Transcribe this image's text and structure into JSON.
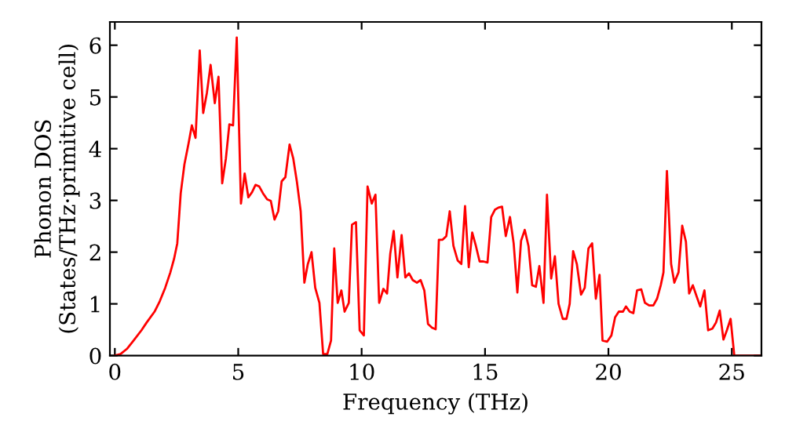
{
  "chart_data": {
    "type": "line",
    "xlabel": "Frequency (THz)",
    "ylabel": "Phonon DOS\n(States/THz·primitive cell)",
    "xlim": [
      -0.2,
      26.2
    ],
    "ylim": [
      0,
      6.45
    ],
    "xticks": [
      0,
      5,
      10,
      15,
      20,
      25
    ],
    "yticks": [
      0,
      1,
      2,
      3,
      4,
      5,
      6
    ],
    "grid": false,
    "legend": false,
    "marker": "none",
    "line_style": "solid",
    "series": [
      {
        "color": "#ff0000",
        "x": [
          0,
          0.23,
          0.49,
          0.76,
          1.08,
          1.29,
          1.61,
          1.82,
          2.04,
          2.25,
          2.4,
          2.53,
          2.67,
          2.82,
          2.99,
          3.12,
          3.27,
          3.44,
          3.58,
          3.73,
          3.88,
          4.05,
          4.2,
          4.35,
          4.5,
          4.64,
          4.79,
          4.94,
          5.11,
          5.26,
          5.41,
          5.56,
          5.7,
          5.85,
          6.0,
          6.17,
          6.32,
          6.47,
          6.62,
          6.76,
          6.91,
          7.08,
          7.23,
          7.38,
          7.53,
          7.68,
          7.82,
          7.97,
          8.12,
          8.29,
          8.44,
          8.61,
          8.76,
          8.89,
          9.03,
          9.18,
          9.31,
          9.48,
          9.61,
          9.77,
          9.92,
          10.09,
          10.24,
          10.41,
          10.56,
          10.71,
          10.88,
          11.03,
          11.16,
          11.3,
          11.45,
          11.62,
          11.77,
          11.92,
          12.07,
          12.24,
          12.39,
          12.54,
          12.69,
          12.85,
          13.0,
          13.13,
          13.28,
          13.43,
          13.57,
          13.72,
          13.89,
          14.04,
          14.19,
          14.34,
          14.48,
          14.63,
          14.78,
          14.93,
          15.1,
          15.25,
          15.4,
          15.54,
          15.69,
          15.84,
          16.01,
          16.16,
          16.31,
          16.46,
          16.61,
          16.76,
          16.91,
          17.06,
          17.2,
          17.37,
          17.51,
          17.68,
          17.83,
          17.98,
          18.15,
          18.3,
          18.43,
          18.57,
          18.72,
          18.89,
          19.04,
          19.19,
          19.34,
          19.49,
          19.64,
          19.76,
          19.95,
          20.12,
          20.27,
          20.42,
          20.59,
          20.71,
          20.86,
          21.01,
          21.16,
          21.33,
          21.48,
          21.65,
          21.82,
          21.97,
          22.12,
          22.23,
          22.37,
          22.54,
          22.67,
          22.84,
          22.99,
          23.14,
          23.27,
          23.42,
          23.57,
          23.72,
          23.89,
          24.04,
          24.21,
          24.36,
          24.51,
          24.66,
          24.8,
          24.95,
          25.1,
          26.2
        ],
        "values": [
          0,
          0.03,
          0.13,
          0.29,
          0.49,
          0.64,
          0.85,
          1.05,
          1.31,
          1.61,
          1.87,
          2.17,
          3.14,
          3.7,
          4.11,
          4.45,
          4.21,
          5.9,
          4.69,
          5.08,
          5.62,
          4.88,
          5.39,
          3.33,
          3.81,
          4.47,
          4.45,
          6.15,
          2.94,
          3.52,
          3.06,
          3.16,
          3.3,
          3.27,
          3.14,
          3.02,
          2.99,
          2.63,
          2.79,
          3.37,
          3.45,
          4.08,
          3.81,
          3.35,
          2.79,
          1.41,
          1.77,
          2.0,
          1.31,
          1.02,
          0.03,
          0.03,
          0.29,
          2.07,
          1.02,
          1.26,
          0.85,
          1.02,
          2.53,
          2.58,
          0.49,
          0.39,
          3.27,
          2.94,
          3.11,
          1.02,
          1.29,
          1.2,
          1.97,
          2.41,
          1.51,
          2.33,
          1.51,
          1.59,
          1.46,
          1.41,
          1.46,
          1.26,
          0.61,
          0.54,
          0.51,
          2.24,
          2.24,
          2.31,
          2.79,
          2.12,
          1.84,
          1.77,
          2.89,
          1.71,
          2.38,
          2.12,
          1.82,
          1.82,
          1.8,
          2.68,
          2.82,
          2.86,
          2.88,
          2.31,
          2.68,
          2.17,
          1.22,
          2.22,
          2.43,
          2.12,
          1.36,
          1.33,
          1.73,
          1.02,
          3.11,
          1.49,
          1.92,
          1.0,
          0.71,
          0.71,
          1.0,
          2.02,
          1.77,
          1.18,
          1.31,
          2.07,
          2.17,
          1.1,
          1.56,
          0.29,
          0.27,
          0.39,
          0.74,
          0.85,
          0.85,
          0.95,
          0.85,
          0.82,
          1.26,
          1.28,
          1.02,
          0.97,
          0.97,
          1.1,
          1.36,
          1.61,
          3.57,
          1.77,
          1.41,
          1.61,
          2.51,
          2.2,
          1.2,
          1.36,
          1.15,
          0.95,
          1.26,
          0.49,
          0.52,
          0.64,
          0.87,
          0.31,
          0.49,
          0.71,
          0.0,
          0.0
        ]
      }
    ]
  }
}
